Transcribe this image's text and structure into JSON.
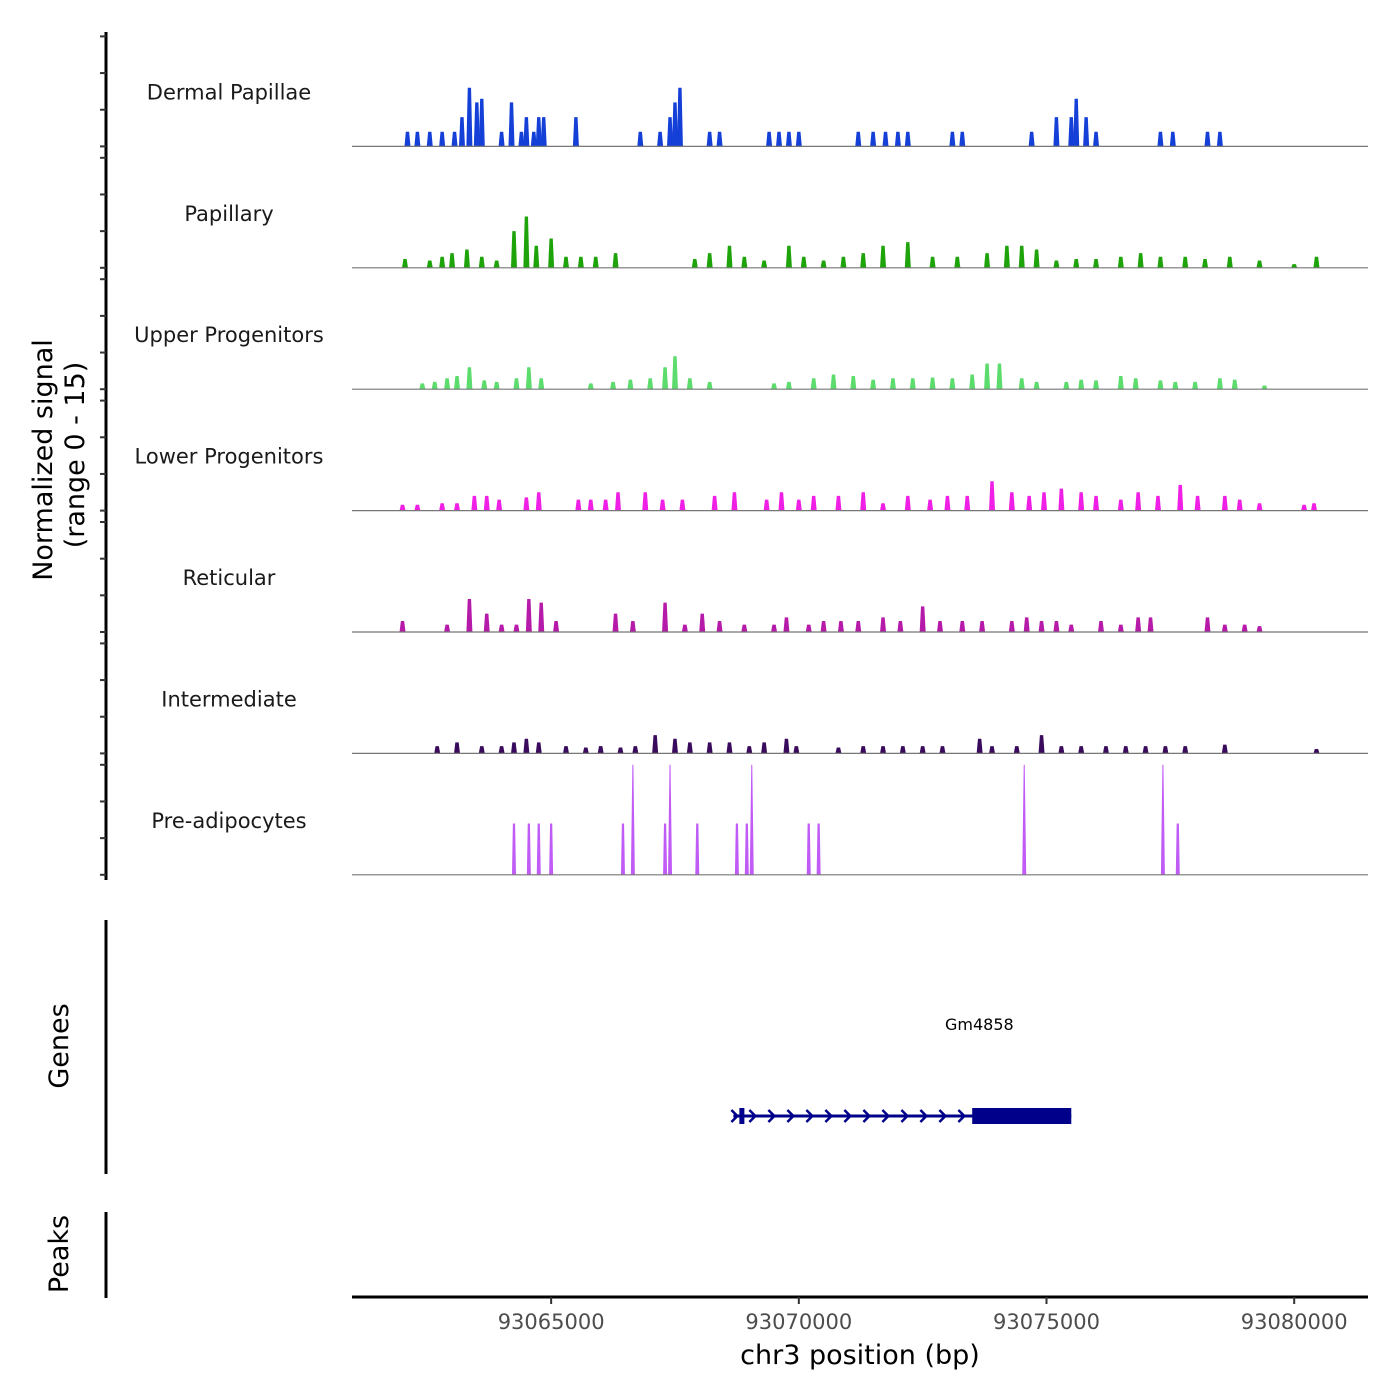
{
  "chart_data": {
    "type": "area",
    "title": "",
    "xlabel": "chr3 position (bp)",
    "ylabel": "Normalized signal\n(range 0 - 15)",
    "ylabel_lines": [
      "Normalized signal",
      "(range 0 - 15)"
    ],
    "ylim": [
      0,
      15
    ],
    "xlim": [
      93060980,
      93081490
    ],
    "x_ticks": [
      93065000,
      93070000,
      93075000,
      93080000
    ],
    "x_tick_labels": [
      "93065000",
      "93070000",
      "93075000",
      "93080000"
    ],
    "grid": false,
    "series": [
      {
        "name": "Dermal Papillae",
        "color": "#1540d8",
        "peaks": [
          [
            93062100,
            2
          ],
          [
            93062300,
            2
          ],
          [
            93062550,
            2
          ],
          [
            93062800,
            2
          ],
          [
            93063050,
            2
          ],
          [
            93063200,
            4
          ],
          [
            93063350,
            8
          ],
          [
            93063500,
            6
          ],
          [
            93063600,
            6.5
          ],
          [
            93064000,
            2
          ],
          [
            93064200,
            6
          ],
          [
            93064400,
            2
          ],
          [
            93064500,
            4
          ],
          [
            93064650,
            2
          ],
          [
            93064750,
            4
          ],
          [
            93064850,
            4
          ],
          [
            93065500,
            4
          ],
          [
            93066800,
            2
          ],
          [
            93067200,
            2
          ],
          [
            93067400,
            4
          ],
          [
            93067500,
            6
          ],
          [
            93067600,
            8
          ],
          [
            93068200,
            2
          ],
          [
            93068400,
            2
          ],
          [
            93069400,
            2
          ],
          [
            93069600,
            2
          ],
          [
            93069800,
            2
          ],
          [
            93070000,
            2
          ],
          [
            93071200,
            2
          ],
          [
            93071500,
            2
          ],
          [
            93071750,
            2
          ],
          [
            93072000,
            2
          ],
          [
            93072200,
            2
          ],
          [
            93073100,
            2
          ],
          [
            93073300,
            2
          ],
          [
            93074700,
            2
          ],
          [
            93075200,
            4
          ],
          [
            93075500,
            4
          ],
          [
            93075600,
            6.5
          ],
          [
            93075800,
            4
          ],
          [
            93076000,
            2
          ],
          [
            93077300,
            2
          ],
          [
            93077550,
            2
          ],
          [
            93078250,
            2
          ],
          [
            93078500,
            2
          ]
        ]
      },
      {
        "name": "Papillary",
        "color": "#1ea40a",
        "peaks": [
          [
            93062050,
            1.2
          ],
          [
            93062550,
            1
          ],
          [
            93062800,
            1.5
          ],
          [
            93063000,
            2
          ],
          [
            93063300,
            2.5
          ],
          [
            93063600,
            1.5
          ],
          [
            93063900,
            1
          ],
          [
            93064250,
            5
          ],
          [
            93064500,
            7
          ],
          [
            93064700,
            3
          ],
          [
            93065000,
            4
          ],
          [
            93065300,
            1.5
          ],
          [
            93065600,
            1.5
          ],
          [
            93065900,
            1.5
          ],
          [
            93066300,
            2
          ],
          [
            93067900,
            1.2
          ],
          [
            93068200,
            2
          ],
          [
            93068600,
            3
          ],
          [
            93068900,
            1.5
          ],
          [
            93069300,
            1
          ],
          [
            93069800,
            3
          ],
          [
            93070100,
            1.5
          ],
          [
            93070500,
            1
          ],
          [
            93070900,
            1.5
          ],
          [
            93071300,
            2
          ],
          [
            93071700,
            3
          ],
          [
            93072200,
            3.5
          ],
          [
            93072700,
            1.5
          ],
          [
            93073200,
            1.5
          ],
          [
            93073800,
            2
          ],
          [
            93074200,
            3
          ],
          [
            93074500,
            3
          ],
          [
            93074800,
            2.5
          ],
          [
            93075200,
            1
          ],
          [
            93075600,
            1.2
          ],
          [
            93076000,
            1.2
          ],
          [
            93076500,
            1.5
          ],
          [
            93076900,
            2
          ],
          [
            93077300,
            1.5
          ],
          [
            93077800,
            1.5
          ],
          [
            93078200,
            1.2
          ],
          [
            93078700,
            1.5
          ],
          [
            93079300,
            1
          ],
          [
            93080000,
            0.5
          ],
          [
            93080450,
            1.5
          ]
        ]
      },
      {
        "name": "Upper Progenitors",
        "color": "#5cdc6c",
        "peaks": [
          [
            93062400,
            0.8
          ],
          [
            93062650,
            1
          ],
          [
            93062900,
            1.5
          ],
          [
            93063100,
            1.8
          ],
          [
            93063350,
            3
          ],
          [
            93063650,
            1.2
          ],
          [
            93063900,
            1
          ],
          [
            93064300,
            1.5
          ],
          [
            93064550,
            3
          ],
          [
            93064800,
            1.5
          ],
          [
            93065800,
            0.8
          ],
          [
            93066250,
            1
          ],
          [
            93066600,
            1.3
          ],
          [
            93067000,
            1.5
          ],
          [
            93067300,
            3
          ],
          [
            93067500,
            4.5
          ],
          [
            93067800,
            1.5
          ],
          [
            93068200,
            1
          ],
          [
            93069500,
            0.8
          ],
          [
            93069800,
            1
          ],
          [
            93070300,
            1.5
          ],
          [
            93070700,
            2
          ],
          [
            93071100,
            1.8
          ],
          [
            93071500,
            1.3
          ],
          [
            93071900,
            1.5
          ],
          [
            93072300,
            1.5
          ],
          [
            93072700,
            1.6
          ],
          [
            93073100,
            1.5
          ],
          [
            93073500,
            2
          ],
          [
            93073800,
            3.5
          ],
          [
            93074050,
            3.5
          ],
          [
            93074500,
            1.5
          ],
          [
            93074800,
            1
          ],
          [
            93075400,
            1
          ],
          [
            93075700,
            1.3
          ],
          [
            93076000,
            1.2
          ],
          [
            93076500,
            1.8
          ],
          [
            93076800,
            1.5
          ],
          [
            93077300,
            1.2
          ],
          [
            93077600,
            1
          ],
          [
            93078000,
            1
          ],
          [
            93078500,
            1.5
          ],
          [
            93078800,
            1.3
          ],
          [
            93079400,
            0.5
          ]
        ]
      },
      {
        "name": "Lower Progenitors",
        "color": "#f01fe6",
        "peaks": [
          [
            93062000,
            0.8
          ],
          [
            93062300,
            0.8
          ],
          [
            93062800,
            1
          ],
          [
            93063100,
            1
          ],
          [
            93063450,
            2
          ],
          [
            93063700,
            2
          ],
          [
            93063950,
            1.5
          ],
          [
            93064500,
            1.8
          ],
          [
            93064750,
            2.5
          ],
          [
            93065550,
            1.5
          ],
          [
            93065800,
            1.5
          ],
          [
            93066100,
            1.5
          ],
          [
            93066350,
            2.5
          ],
          [
            93066900,
            2.5
          ],
          [
            93067250,
            1.5
          ],
          [
            93067650,
            1.5
          ],
          [
            93068300,
            2
          ],
          [
            93068700,
            2.5
          ],
          [
            93069350,
            1.5
          ],
          [
            93069650,
            2.5
          ],
          [
            93070000,
            1.5
          ],
          [
            93070300,
            2
          ],
          [
            93070800,
            2
          ],
          [
            93071300,
            2.5
          ],
          [
            93071700,
            1
          ],
          [
            93072200,
            2
          ],
          [
            93072650,
            1.5
          ],
          [
            93073000,
            2
          ],
          [
            93073400,
            2
          ],
          [
            93073900,
            4
          ],
          [
            93074300,
            2.5
          ],
          [
            93074650,
            2
          ],
          [
            93074950,
            2.5
          ],
          [
            93075300,
            3
          ],
          [
            93075700,
            2.5
          ],
          [
            93076000,
            2
          ],
          [
            93076500,
            1.5
          ],
          [
            93076850,
            2.5
          ],
          [
            93077250,
            2
          ],
          [
            93077700,
            3.5
          ],
          [
            93078050,
            2
          ],
          [
            93078600,
            2
          ],
          [
            93078900,
            1.5
          ],
          [
            93079300,
            1
          ],
          [
            93080200,
            0.8
          ],
          [
            93080400,
            1
          ]
        ]
      },
      {
        "name": "Reticular",
        "color": "#b61aa9",
        "peaks": [
          [
            93062000,
            1.5
          ],
          [
            93062900,
            1
          ],
          [
            93063350,
            4.5
          ],
          [
            93063700,
            2.5
          ],
          [
            93064000,
            1
          ],
          [
            93064300,
            1
          ],
          [
            93064550,
            4.5
          ],
          [
            93064800,
            4
          ],
          [
            93065100,
            1.5
          ],
          [
            93066300,
            2.5
          ],
          [
            93066650,
            1.5
          ],
          [
            93067300,
            4
          ],
          [
            93067700,
            1
          ],
          [
            93068050,
            2.5
          ],
          [
            93068400,
            1.5
          ],
          [
            93068900,
            1
          ],
          [
            93069500,
            1
          ],
          [
            93069750,
            2
          ],
          [
            93070200,
            1
          ],
          [
            93070500,
            1.5
          ],
          [
            93070850,
            1.5
          ],
          [
            93071200,
            1.5
          ],
          [
            93071700,
            2
          ],
          [
            93072050,
            1.5
          ],
          [
            93072500,
            3.5
          ],
          [
            93072850,
            1.5
          ],
          [
            93073300,
            1.5
          ],
          [
            93073700,
            1.5
          ],
          [
            93074300,
            1.5
          ],
          [
            93074600,
            2
          ],
          [
            93074900,
            1.5
          ],
          [
            93075200,
            1.5
          ],
          [
            93075500,
            1
          ],
          [
            93076100,
            1.5
          ],
          [
            93076500,
            1
          ],
          [
            93076850,
            2
          ],
          [
            93077100,
            2
          ],
          [
            93078250,
            2
          ],
          [
            93078600,
            1
          ],
          [
            93079000,
            1
          ],
          [
            93079300,
            0.8
          ]
        ]
      },
      {
        "name": "Intermediate",
        "color": "#3a0b5c",
        "peaks": [
          [
            93062700,
            1
          ],
          [
            93063100,
            1.5
          ],
          [
            93063600,
            1
          ],
          [
            93064000,
            1
          ],
          [
            93064250,
            1.5
          ],
          [
            93064500,
            2
          ],
          [
            93064750,
            1.5
          ],
          [
            93065300,
            1
          ],
          [
            93065700,
            0.8
          ],
          [
            93066000,
            1
          ],
          [
            93066400,
            0.8
          ],
          [
            93066700,
            1
          ],
          [
            93067100,
            2.5
          ],
          [
            93067500,
            2
          ],
          [
            93067800,
            1.5
          ],
          [
            93068200,
            1.5
          ],
          [
            93068600,
            1.5
          ],
          [
            93069000,
            1
          ],
          [
            93069300,
            1.5
          ],
          [
            93069750,
            2
          ],
          [
            93069950,
            1
          ],
          [
            93070800,
            0.8
          ],
          [
            93071300,
            1
          ],
          [
            93071700,
            1
          ],
          [
            93072100,
            1
          ],
          [
            93072500,
            1
          ],
          [
            93072900,
            1
          ],
          [
            93073650,
            2
          ],
          [
            93073900,
            1
          ],
          [
            93074400,
            1
          ],
          [
            93074900,
            2.5
          ],
          [
            93075300,
            1
          ],
          [
            93075700,
            1
          ],
          [
            93076200,
            1
          ],
          [
            93076600,
            1
          ],
          [
            93077000,
            1
          ],
          [
            93077400,
            1
          ],
          [
            93077800,
            1
          ],
          [
            93078600,
            1.2
          ],
          [
            93080450,
            0.6
          ]
        ]
      },
      {
        "name": "Pre-adipocytes",
        "color": "#c05cf5",
        "peaks": [
          [
            93064250,
            7
          ],
          [
            93064550,
            7
          ],
          [
            93064750,
            7
          ],
          [
            93065000,
            7
          ],
          [
            93066450,
            7
          ],
          [
            93066650,
            15
          ],
          [
            93067300,
            7
          ],
          [
            93067400,
            15
          ],
          [
            93067950,
            7
          ],
          [
            93068750,
            7
          ],
          [
            93068950,
            7
          ],
          [
            93069050,
            15
          ],
          [
            93070200,
            7
          ],
          [
            93070400,
            7
          ],
          [
            93074550,
            15
          ],
          [
            93077350,
            15
          ],
          [
            93077650,
            7
          ]
        ]
      }
    ],
    "genes": [
      {
        "name": "Gm4858",
        "start": 93068800,
        "end": 93075500,
        "strand": "+",
        "exons": [
          [
            93068800,
            93068900
          ],
          [
            93073500,
            93075500
          ]
        ],
        "color": "#00008b"
      }
    ],
    "panels": [
      "Normalized signal\n(range 0 - 15)",
      "Genes",
      "Peaks"
    ]
  },
  "panel_labels": {
    "signal_line1": "Normalized signal",
    "signal_line2": "(range 0 - 15)",
    "genes": "Genes",
    "peaks": "Peaks"
  }
}
